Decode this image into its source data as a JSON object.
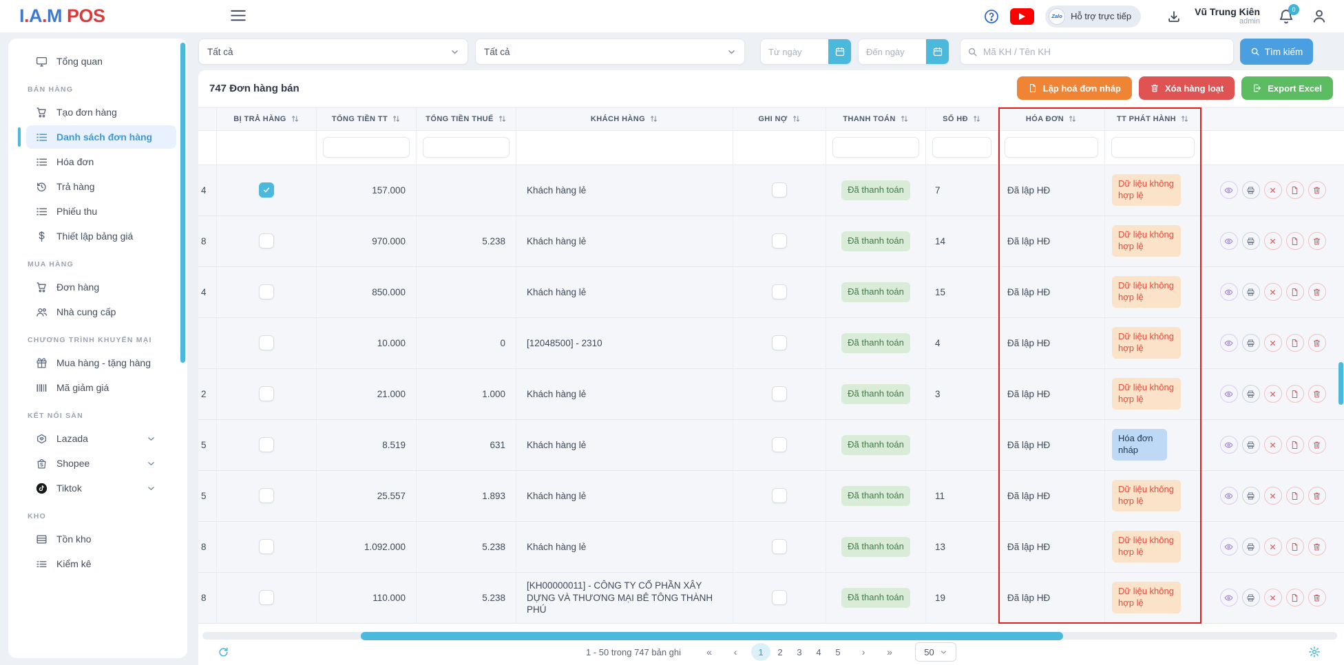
{
  "colors": {
    "accent": "#4ab9dc",
    "primary": "#4a9fe0",
    "orange": "#ee8434",
    "red": "#df5353",
    "green": "#5bbc62",
    "badgeGreenBg": "#d8ecd8",
    "badgeGreenText": "#417a48",
    "badgeOrangeBg": "#fbe3ca",
    "badgeOrangeText": "#e8493b",
    "badgeBlueBg": "#bed9f6",
    "badgeBlueText": "#1c344f",
    "annotation": "#e0201d",
    "activeBlue": "#3a9ad9",
    "logoBlue": "#3f7ad1",
    "logoRed": "#d93a3c"
  },
  "brand": {
    "iam": "I.A.M",
    "pos": "POS"
  },
  "topbar": {
    "support_label": "Hỗ trợ trực tiếp",
    "zalo_label": "Zalo",
    "user_name": "Vũ Trung Kiên",
    "user_role": "admin",
    "notification_count": "0"
  },
  "sidebar": {
    "sections": [
      {
        "title": "",
        "items": [
          {
            "label": "Tổng quan",
            "icon": "monitor"
          }
        ]
      },
      {
        "title": "BÁN HÀNG",
        "items": [
          {
            "label": "Tạo đơn hàng",
            "icon": "cart"
          },
          {
            "label": "Danh sách đơn hàng",
            "icon": "list",
            "active": true
          },
          {
            "label": "Hóa đơn",
            "icon": "list"
          },
          {
            "label": "Trả hàng",
            "icon": "history"
          },
          {
            "label": "Phiếu thu",
            "icon": "list"
          },
          {
            "label": "Thiết lập bảng giá",
            "icon": "dollar"
          }
        ]
      },
      {
        "title": "MUA HÀNG",
        "items": [
          {
            "label": "Đơn hàng",
            "icon": "cart"
          },
          {
            "label": "Nhà cung cấp",
            "icon": "people"
          }
        ]
      },
      {
        "title": "CHƯƠNG TRÌNH KHUYẾN MẠI",
        "items": [
          {
            "label": "Mua hàng - tặng hàng",
            "icon": "gift"
          },
          {
            "label": "Mã giảm giá",
            "icon": "barcode"
          }
        ]
      },
      {
        "title": "KẾT NỐI SÀN",
        "items": [
          {
            "label": "Lazada",
            "icon": "lazada",
            "chevron": true
          },
          {
            "label": "Shopee",
            "icon": "shopee",
            "chevron": true
          },
          {
            "label": "Tiktok",
            "icon": "tiktok",
            "chevron": true
          }
        ]
      },
      {
        "title": "KHO",
        "items": [
          {
            "label": "Tồn kho",
            "icon": "table"
          },
          {
            "label": "Kiểm kê",
            "icon": "checklist"
          }
        ]
      }
    ]
  },
  "filters": {
    "dropdown1": "Tất cả",
    "dropdown2": "Tất cả",
    "from_date_placeholder": "Từ ngày",
    "to_date_placeholder": "Đến ngày",
    "search_placeholder": "Mã KH / Tên KH",
    "search_button": "Tìm kiếm"
  },
  "toolbar": {
    "title": "747 Đơn hàng bán",
    "draft_invoice_button": "Lập hoá đơn nháp",
    "bulk_delete_button": "Xóa hàng loạt",
    "export_button": "Export Excel"
  },
  "table": {
    "columns": [
      {
        "label": "BỊ TRẢ HÀNG",
        "filter": false
      },
      {
        "label": "TỔNG TIỀN TT",
        "filter": true
      },
      {
        "label": "TỔNG TIỀN THUẾ",
        "filter": true
      },
      {
        "label": "KHÁCH HÀNG",
        "filter": false
      },
      {
        "label": "GHI NỢ",
        "filter": false
      },
      {
        "label": "THANH TOÁN",
        "filter": true
      },
      {
        "label": "SỐ HĐ",
        "filter": true
      },
      {
        "label": "HÓA ĐƠN",
        "filter": true
      },
      {
        "label": "TT PHÁT HÀNH",
        "filter": true
      }
    ],
    "row_actions": [
      {
        "name": "view-order-button",
        "icon": "eye"
      },
      {
        "name": "print-order-button",
        "icon": "printer"
      },
      {
        "name": "cancel-order-button",
        "icon": "x"
      },
      {
        "name": "invoice-file-button",
        "icon": "file"
      },
      {
        "name": "delete-order-button",
        "icon": "trash"
      }
    ],
    "rows": [
      {
        "left": "4",
        "returned": true,
        "total": "157.000",
        "tax": "",
        "customer": "Khách hàng lẻ",
        "debt": false,
        "payment": "Đã thanh toán",
        "so_hd": "7",
        "invoice": "Đã lập HĐ",
        "status": "Dữ liệu không hợp lệ",
        "status_type": "invalid"
      },
      {
        "left": "8",
        "returned": false,
        "total": "970.000",
        "tax": "5.238",
        "customer": "Khách hàng lẻ",
        "debt": false,
        "payment": "Đã thanh toán",
        "so_hd": "14",
        "invoice": "Đã lập HĐ",
        "status": "Dữ liệu không hợp lệ",
        "status_type": "invalid"
      },
      {
        "left": "4",
        "returned": false,
        "total": "850.000",
        "tax": "",
        "customer": "Khách hàng lẻ",
        "debt": false,
        "payment": "Đã thanh toán",
        "so_hd": "15",
        "invoice": "Đã lập HĐ",
        "status": "Dữ liệu không hợp lệ",
        "status_type": "invalid"
      },
      {
        "left": "",
        "returned": false,
        "total": "10.000",
        "tax": "0",
        "customer": "[12048500] - 2310",
        "debt": false,
        "payment": "Đã thanh toán",
        "so_hd": "4",
        "invoice": "Đã lập HĐ",
        "status": "Dữ liệu không hợp lệ",
        "status_type": "invalid"
      },
      {
        "left": "2",
        "returned": false,
        "total": "21.000",
        "tax": "1.000",
        "customer": "Khách hàng lẻ",
        "debt": false,
        "payment": "Đã thanh toán",
        "so_hd": "3",
        "invoice": "Đã lập HĐ",
        "status": "Dữ liệu không hợp lệ",
        "status_type": "invalid"
      },
      {
        "left": "5",
        "returned": false,
        "total": "8.519",
        "tax": "631",
        "customer": "Khách hàng lẻ",
        "debt": false,
        "payment": "Đã thanh toán",
        "so_hd": "",
        "invoice": "Đã lập HĐ",
        "status": "Hóa đơn nháp",
        "status_type": "draft"
      },
      {
        "left": "5",
        "returned": false,
        "total": "25.557",
        "tax": "1.893",
        "customer": "Khách hàng lẻ",
        "debt": false,
        "payment": "Đã thanh toán",
        "so_hd": "11",
        "invoice": "Đã lập HĐ",
        "status": "Dữ liệu không hợp lệ",
        "status_type": "invalid"
      },
      {
        "left": "8",
        "returned": false,
        "total": "1.092.000",
        "tax": "5.238",
        "customer": "Khách hàng lẻ",
        "debt": false,
        "payment": "Đã thanh toán",
        "so_hd": "13",
        "invoice": "Đã lập HĐ",
        "status": "Dữ liệu không hợp lệ",
        "status_type": "invalid"
      },
      {
        "left": "8",
        "returned": false,
        "total": "110.000",
        "tax": "5.238",
        "customer": "[KH00000011] - CÔNG TY CỔ PHẦN XÂY DỰNG VÀ THƯƠNG MẠI BÊ TÔNG THÀNH PHÚ",
        "debt": false,
        "payment": "Đã thanh toán",
        "so_hd": "19",
        "invoice": "Đã lập HĐ",
        "status": "Dữ liệu không hợp lệ",
        "status_type": "invalid"
      }
    ]
  },
  "pagination": {
    "summary": "1 - 50 trong 747 bản ghi",
    "first_label": "«",
    "prev_label": "‹",
    "next_label": "›",
    "last_label": "»",
    "pages": [
      "1",
      "2",
      "3",
      "4",
      "5"
    ],
    "current": "1",
    "page_size": "50"
  }
}
